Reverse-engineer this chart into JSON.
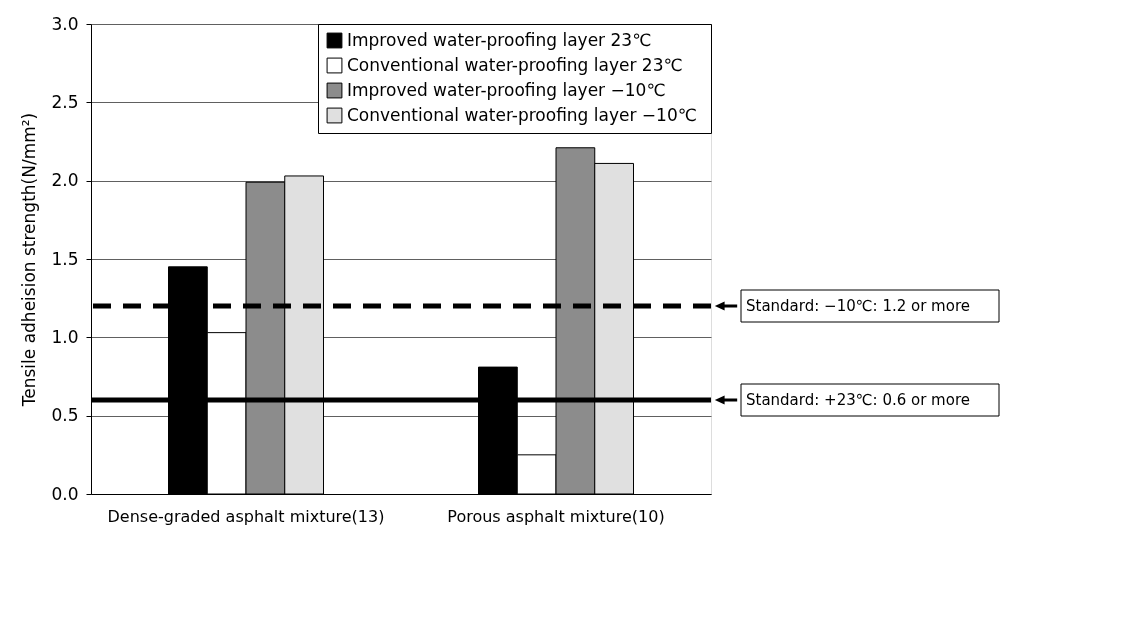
{
  "chart_data": {
    "type": "bar",
    "ylabel": "Tensile adheision strength(N/mm²)",
    "categories": [
      "Dense-graded asphalt mixture(13)",
      "Porous asphalt mixture(10)"
    ],
    "series": [
      {
        "name": "Improved water-proofing layer  23℃",
        "color": "#000000",
        "values": [
          1.45,
          0.81
        ]
      },
      {
        "name": "Conventional water-proofing layer  23℃",
        "color": "#ffffff",
        "values": [
          1.03,
          0.25
        ]
      },
      {
        "name": "Improved water-proofing layer  −10℃",
        "color": "#8c8c8c",
        "values": [
          1.99,
          2.21
        ]
      },
      {
        "name": "Conventional water-proofing layer  −10℃",
        "color": "#e0e0e0",
        "values": [
          2.03,
          2.11
        ]
      }
    ],
    "ylim": [
      0,
      3
    ],
    "yticks": [
      {
        "value": 0,
        "label": "0.0"
      },
      {
        "value": 0.5,
        "label": "0.5"
      },
      {
        "value": 1,
        "label": "1.0"
      },
      {
        "value": 1.5,
        "label": "1.5"
      },
      {
        "value": 2,
        "label": "2.0"
      },
      {
        "value": 2.5,
        "label": "2.5"
      },
      {
        "value": 3,
        "label": "3.0"
      }
    ],
    "ref_lines": [
      {
        "axis": "y",
        "value": 1.2,
        "label": "Standard: −10℃: 1.2 or more",
        "line_style": "dashed",
        "color": "#000000"
      },
      {
        "axis": "y",
        "value": 0.6,
        "label": "Standard: +23℃: 0.6 or more",
        "line_style": "solid",
        "color": "#000000"
      }
    ],
    "grid": "y",
    "legend": "top right"
  }
}
